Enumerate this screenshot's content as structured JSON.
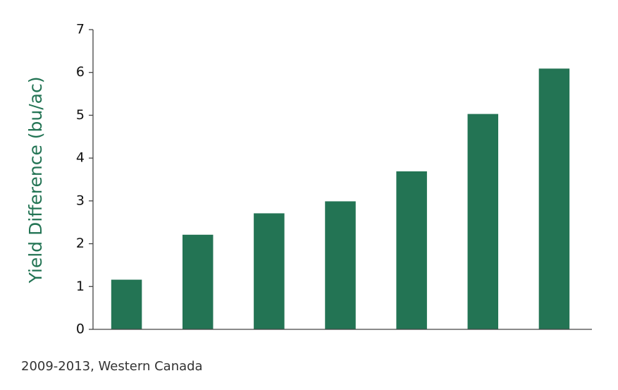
{
  "chart_data": {
    "type": "bar",
    "ylabel": "Yield Difference (bu/ac)",
    "annotation": "2009-2013, Western Canada",
    "categories": [
      null,
      null,
      null,
      null,
      null,
      null,
      null
    ],
    "values": [
      1.16,
      2.21,
      2.71,
      2.99,
      3.69,
      5.03,
      6.09
    ],
    "color": "#237454",
    "label_color": "#237454",
    "ylim": [
      0,
      7
    ],
    "yticks": [
      0,
      1,
      2,
      3,
      4,
      5,
      6,
      7
    ],
    "grid": false
  }
}
